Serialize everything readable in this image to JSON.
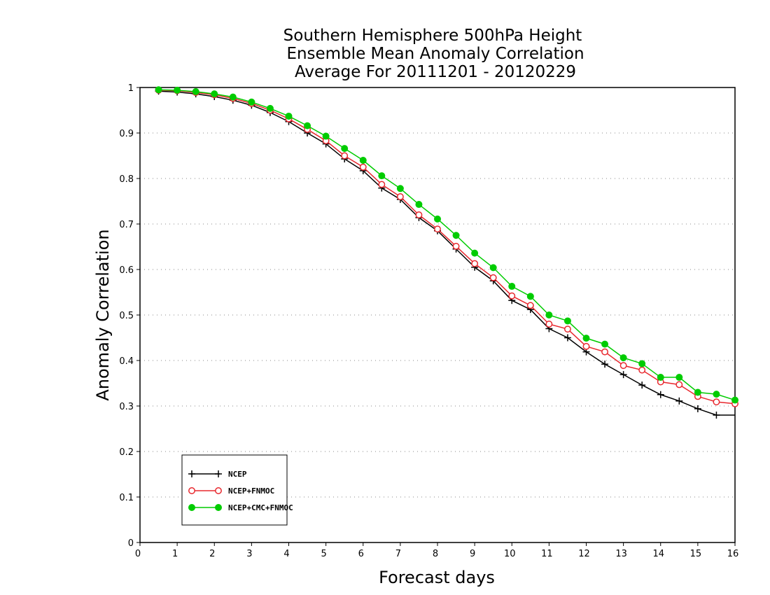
{
  "chart_data": {
    "type": "line",
    "title_lines": [
      "Southern Hemisphere 500hPa Height",
      "Ensemble Mean Anomaly Correlation",
      "Average For 20111201 - 20120229"
    ],
    "xlabel": "Forecast days",
    "ylabel": "Anomaly Correlation",
    "xlim": [
      0,
      16
    ],
    "ylim": [
      0,
      1
    ],
    "x_ticks": [
      "0",
      "1",
      "2",
      "3",
      "4",
      "5",
      "6",
      "7",
      "8",
      "9",
      "10",
      "11",
      "12",
      "13",
      "14",
      "15",
      "16"
    ],
    "y_ticks": [
      "0",
      "0.1",
      "0.2",
      "0.3",
      "0.4",
      "0.5",
      "0.6",
      "0.7",
      "0.8",
      "0.9",
      "1"
    ],
    "grid": true,
    "legend_position": "bottom-left",
    "x": [
      0.5,
      1,
      1.5,
      2,
      2.5,
      3,
      3.5,
      4,
      4.5,
      5,
      5.5,
      6,
      6.5,
      7,
      7.5,
      8,
      8.5,
      9,
      9.5,
      10,
      10.5,
      11,
      11.5,
      12,
      12.5,
      13,
      13.5,
      14,
      14.5,
      15,
      15.5,
      16
    ],
    "series": [
      {
        "name": "NCEP",
        "color": "#000000",
        "marker": "plus",
        "values": [
          0.992,
          0.99,
          0.986,
          0.98,
          0.972,
          0.961,
          0.945,
          0.925,
          0.9,
          0.876,
          0.843,
          0.817,
          0.779,
          0.754,
          0.714,
          0.685,
          0.645,
          0.605,
          0.575,
          0.532,
          0.512,
          0.47,
          0.45,
          0.419,
          0.392,
          0.369,
          0.346,
          0.325,
          0.311,
          0.294,
          0.28,
          0.28
        ]
      },
      {
        "name": "NCEP+FNMOC",
        "color": "#e8282e",
        "marker": "open-circle",
        "values": [
          0.994,
          0.993,
          0.989,
          0.984,
          0.976,
          0.965,
          0.95,
          0.931,
          0.908,
          0.883,
          0.85,
          0.825,
          0.787,
          0.76,
          0.72,
          0.689,
          0.651,
          0.613,
          0.582,
          0.542,
          0.521,
          0.48,
          0.469,
          0.431,
          0.419,
          0.389,
          0.379,
          0.353,
          0.347,
          0.321,
          0.309,
          0.305
        ]
      },
      {
        "name": "NCEP+CMC+FNMOC",
        "color": "#00cc00",
        "marker": "filled-circle",
        "values": [
          0.995,
          0.994,
          0.991,
          0.986,
          0.979,
          0.968,
          0.954,
          0.937,
          0.916,
          0.893,
          0.866,
          0.84,
          0.806,
          0.778,
          0.743,
          0.711,
          0.675,
          0.636,
          0.604,
          0.563,
          0.541,
          0.5,
          0.487,
          0.449,
          0.436,
          0.406,
          0.393,
          0.363,
          0.363,
          0.33,
          0.326,
          0.313
        ]
      }
    ]
  }
}
